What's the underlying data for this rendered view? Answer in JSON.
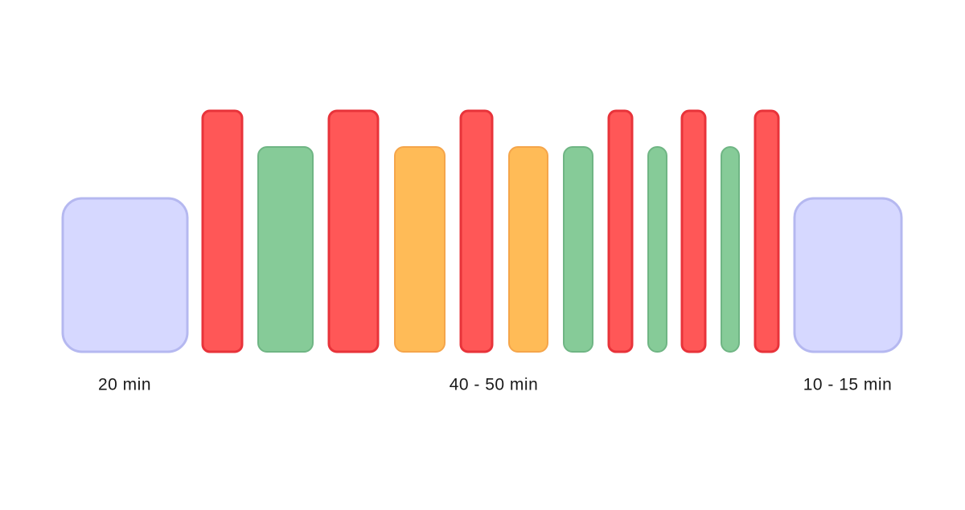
{
  "labels": {
    "warm_up": "20 min",
    "main": "40 - 50 min",
    "cool_down": "10 - 15 min"
  }
}
